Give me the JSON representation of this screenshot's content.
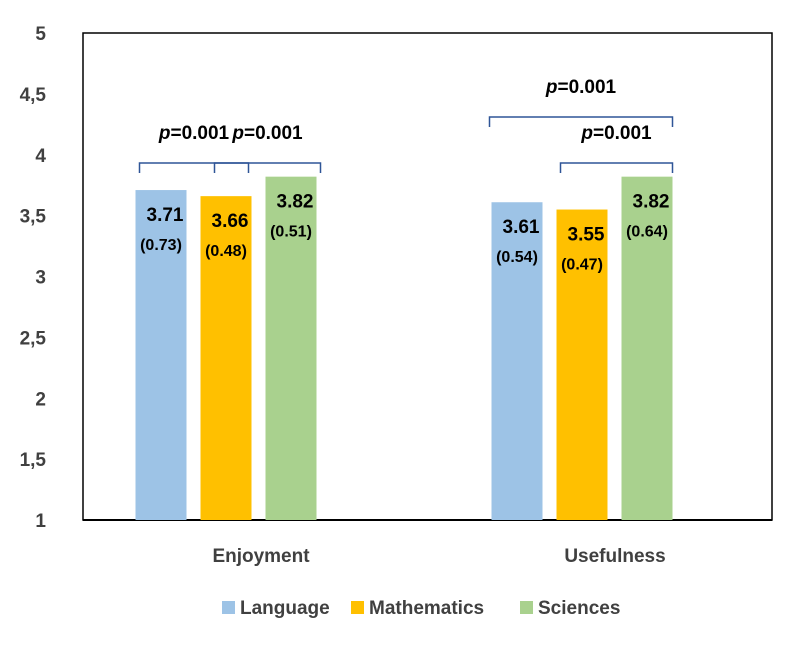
{
  "chart_data": {
    "type": "bar",
    "categories": [
      "Enjoyment",
      "Usefulness"
    ],
    "series": [
      {
        "name": "Language",
        "color": "#9DC3E6",
        "values": [
          3.71,
          3.61
        ],
        "sd": [
          "0.73",
          "0.54"
        ]
      },
      {
        "name": "Mathematics",
        "color": "#FFC000",
        "values": [
          3.66,
          3.55
        ],
        "sd": [
          "0.48",
          "0.47"
        ]
      },
      {
        "name": "Sciences",
        "color": "#A9D18E",
        "values": [
          3.82,
          3.82
        ],
        "sd": [
          "0.51",
          "0.64"
        ]
      }
    ],
    "value_labels": [
      [
        "3.71",
        "3.61"
      ],
      [
        "3.66",
        "3.55"
      ],
      [
        "3.82",
        "3.82"
      ]
    ],
    "ylim": [
      1,
      5
    ],
    "yticks": [
      1,
      1.5,
      2,
      2.5,
      3,
      3.5,
      4,
      4.5,
      5
    ],
    "ytick_labels": [
      "1",
      "1,5",
      "2",
      "2,5",
      "3",
      "3,5",
      "4",
      "4,5",
      "5"
    ],
    "grid": false,
    "legend_position": "bottom",
    "bracket_color": "#2F5597",
    "significance": [
      {
        "category": "Enjoyment",
        "from": "Language",
        "to": "Mathematics",
        "p_letter": "p",
        "p_value": "=0.001"
      },
      {
        "category": "Enjoyment",
        "from": "Mathematics",
        "to": "Sciences",
        "p_letter": "p",
        "p_value": "=0.001"
      },
      {
        "category": "Usefulness",
        "from": "Language",
        "to": "Sciences",
        "p_letter": "p",
        "p_value": "=0.001"
      },
      {
        "category": "Usefulness",
        "from": "Mathematics",
        "to": "Sciences",
        "p_letter": "p",
        "p_value": "=0.001"
      }
    ],
    "title": "",
    "xlabel": "",
    "ylabel": ""
  }
}
